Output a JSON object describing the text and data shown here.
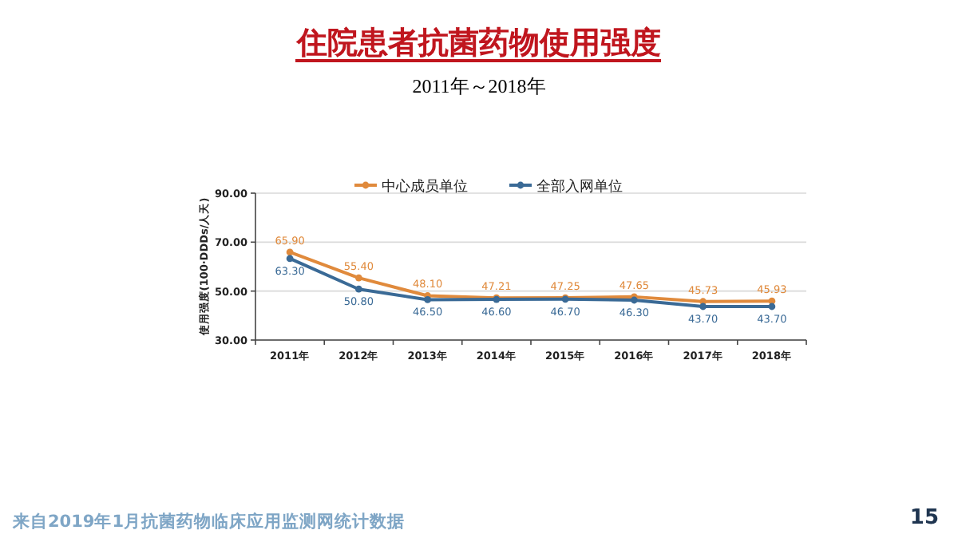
{
  "chart_data": {
    "type": "line",
    "title": "住院患者抗菌药物使用强度",
    "subtitle": "2011年～2018年",
    "ylabel": "使用强度(100·DDDs/人天)",
    "categories": [
      "2011年",
      "2012年",
      "2013年",
      "2014年",
      "2015年",
      "2016年",
      "2017年",
      "2018年"
    ],
    "series": [
      {
        "name": "中心成员单位",
        "color": "#e08a3c",
        "values": [
          65.9,
          55.4,
          48.1,
          47.21,
          47.25,
          47.65,
          45.73,
          45.93
        ],
        "value_labels": [
          "65.90",
          "55.40",
          "48.10",
          "47.21",
          "47.25",
          "47.65",
          "45.73",
          "45.93"
        ]
      },
      {
        "name": "全部入网单位",
        "color": "#3a6a96",
        "values": [
          63.3,
          50.8,
          46.5,
          46.6,
          46.7,
          46.3,
          43.7,
          43.7
        ],
        "value_labels": [
          "63.30",
          "50.80",
          "46.50",
          "46.60",
          "46.70",
          "46.30",
          "43.70",
          "43.70"
        ]
      }
    ],
    "ylim": [
      30,
      90
    ],
    "yticks": [
      {
        "value": 30,
        "label": "30.00"
      },
      {
        "value": 50,
        "label": "50.00"
      },
      {
        "value": 70,
        "label": "70.00"
      },
      {
        "value": 90,
        "label": "90.00"
      }
    ],
    "grid": "y",
    "legend": "top",
    "marker": "circle",
    "line_style": "solid",
    "annotations": [
      "来自2019年1月抗菌药物临床应用监测网统计数据",
      "15"
    ]
  }
}
